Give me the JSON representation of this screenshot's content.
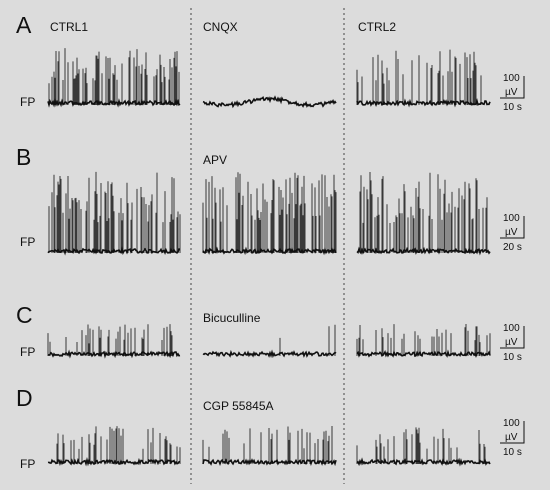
{
  "figure": {
    "background": "#dcdcdc",
    "trace_color": "#111111",
    "scale_unit_amplitude": "µV",
    "panels": [
      {
        "letter": "A",
        "row_label": "FP",
        "scale": {
          "amplitude": "100",
          "unit": "µV",
          "time": "10 s"
        },
        "conditions": [
          {
            "label": "CTRL1",
            "activity": "dense"
          },
          {
            "label": "CNQX",
            "activity": "suppressed"
          },
          {
            "label": "CTRL2",
            "activity": "moderate"
          }
        ]
      },
      {
        "letter": "B",
        "row_label": "FP",
        "scale": {
          "amplitude": "100",
          "unit": "µV",
          "time": "20 s"
        },
        "conditions": [
          {
            "label": "",
            "activity": "dense"
          },
          {
            "label": "APV",
            "activity": "dense"
          },
          {
            "label": "",
            "activity": "dense"
          }
        ]
      },
      {
        "letter": "C",
        "row_label": "FP",
        "scale": {
          "amplitude": "100",
          "unit": "µV",
          "time": "10 s"
        },
        "conditions": [
          {
            "label": "",
            "activity": "moderate"
          },
          {
            "label": "Bicuculline",
            "activity": "sparse"
          },
          {
            "label": "",
            "activity": "moderate"
          }
        ]
      },
      {
        "letter": "D",
        "row_label": "FP",
        "scale": {
          "amplitude": "100",
          "unit": "µV",
          "time": "10 s"
        },
        "conditions": [
          {
            "label": "",
            "activity": "moderate"
          },
          {
            "label": "CGP  55845A",
            "activity": "moderate"
          },
          {
            "label": "",
            "activity": "moderate"
          }
        ]
      }
    ]
  }
}
